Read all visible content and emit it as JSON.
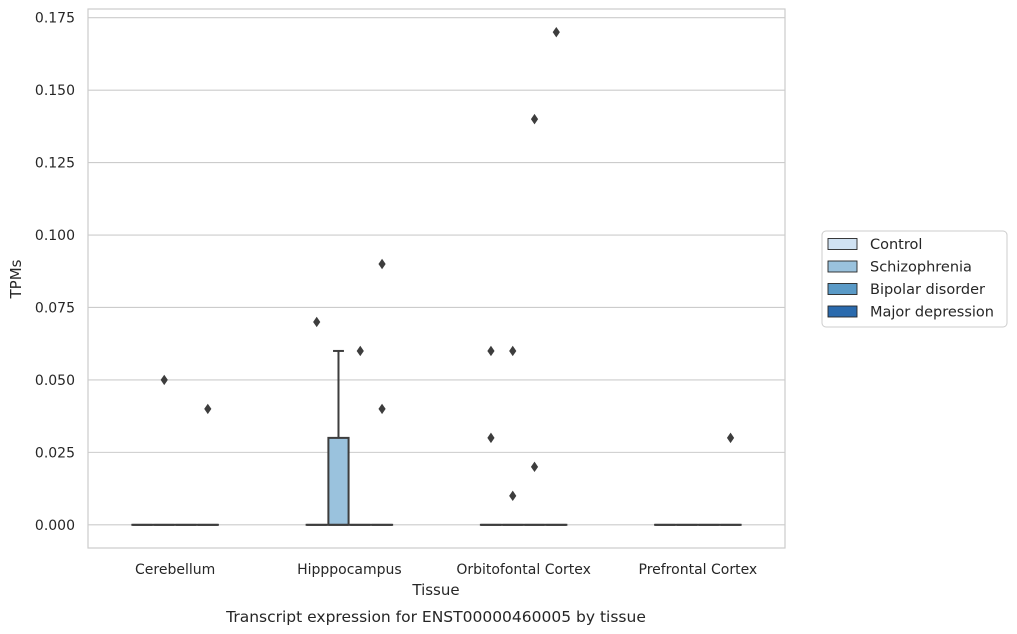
{
  "chart_data": {
    "type": "box",
    "xlabel": "Tissue",
    "ylabel": "TPMs",
    "caption": "Transcript expression for ENST00000460005 by tissue",
    "categories": [
      "Cerebellum",
      "Hipppocampus",
      "Orbitofontal Cortex",
      "Prefrontal Cortex"
    ],
    "ylim": [
      -0.008,
      0.178
    ],
    "yticks": [
      "0.000",
      "0.025",
      "0.050",
      "0.075",
      "0.100",
      "0.125",
      "0.150",
      "0.175"
    ],
    "grid": true,
    "legend_position": "right",
    "series": [
      {
        "name": "Control",
        "color": "#d0e2f2",
        "boxes": [
          {
            "category": "Cerebellum",
            "q1": 0,
            "median": 0,
            "q3": 0,
            "whisker_low": 0,
            "whisker_high": 0,
            "outliers": []
          },
          {
            "category": "Hipppocampus",
            "q1": 0,
            "median": 0,
            "q3": 0,
            "whisker_low": 0,
            "whisker_high": 0,
            "outliers": [
              0.07
            ]
          },
          {
            "category": "Orbitofontal Cortex",
            "q1": 0,
            "median": 0,
            "q3": 0,
            "whisker_low": 0,
            "whisker_high": 0,
            "outliers": [
              0.06,
              0.03
            ]
          },
          {
            "category": "Prefrontal Cortex",
            "q1": 0,
            "median": 0,
            "q3": 0,
            "whisker_low": 0,
            "whisker_high": 0,
            "outliers": []
          }
        ]
      },
      {
        "name": "Schizophrenia",
        "color": "#9ac2dd",
        "boxes": [
          {
            "category": "Cerebellum",
            "q1": 0,
            "median": 0,
            "q3": 0,
            "whisker_low": 0,
            "whisker_high": 0,
            "outliers": [
              0.05
            ]
          },
          {
            "category": "Hipppocampus",
            "q1": 0,
            "median": 0,
            "q3": 0.03,
            "whisker_low": 0,
            "whisker_high": 0.06,
            "outliers": []
          },
          {
            "category": "Orbitofontal Cortex",
            "q1": 0,
            "median": 0,
            "q3": 0,
            "whisker_low": 0,
            "whisker_high": 0,
            "outliers": [
              0.06,
              0.01
            ]
          },
          {
            "category": "Prefrontal Cortex",
            "q1": 0,
            "median": 0,
            "q3": 0,
            "whisker_low": 0,
            "whisker_high": 0,
            "outliers": []
          }
        ]
      },
      {
        "name": "Bipolar disorder",
        "color": "#5a9ac7",
        "boxes": [
          {
            "category": "Cerebellum",
            "q1": 0,
            "median": 0,
            "q3": 0,
            "whisker_low": 0,
            "whisker_high": 0,
            "outliers": []
          },
          {
            "category": "Hipppocampus",
            "q1": 0,
            "median": 0,
            "q3": 0,
            "whisker_low": 0,
            "whisker_high": 0,
            "outliers": [
              0.06
            ]
          },
          {
            "category": "Orbitofontal Cortex",
            "q1": 0,
            "median": 0,
            "q3": 0,
            "whisker_low": 0,
            "whisker_high": 0,
            "outliers": [
              0.14,
              0.02
            ]
          },
          {
            "category": "Prefrontal Cortex",
            "q1": 0,
            "median": 0,
            "q3": 0,
            "whisker_low": 0,
            "whisker_high": 0,
            "outliers": []
          }
        ]
      },
      {
        "name": "Major depression",
        "color": "#2a6aad",
        "boxes": [
          {
            "category": "Cerebellum",
            "q1": 0,
            "median": 0,
            "q3": 0,
            "whisker_low": 0,
            "whisker_high": 0,
            "outliers": [
              0.04
            ]
          },
          {
            "category": "Hipppocampus",
            "q1": 0,
            "median": 0,
            "q3": 0,
            "whisker_low": 0,
            "whisker_high": 0,
            "outliers": [
              0.09,
              0.04
            ]
          },
          {
            "category": "Orbitofontal Cortex",
            "q1": 0,
            "median": 0,
            "q3": 0,
            "whisker_low": 0,
            "whisker_high": 0,
            "outliers": [
              0.17
            ]
          },
          {
            "category": "Prefrontal Cortex",
            "q1": 0,
            "median": 0,
            "q3": 0,
            "whisker_low": 0,
            "whisker_high": 0,
            "outliers": [
              0.03
            ]
          }
        ]
      }
    ]
  }
}
